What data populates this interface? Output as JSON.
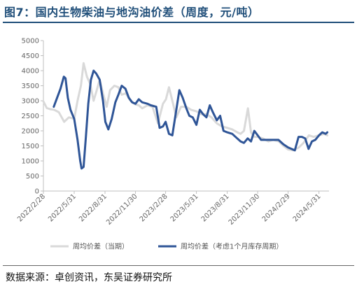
{
  "header": {
    "title": "图7：国内生物柴油与地沟油价差（周度，元/吨）"
  },
  "footer": {
    "source": "数据来源：卓创资讯，东吴证券研究所"
  },
  "chart_data": {
    "type": "line",
    "title": "图7：国内生物柴油与地沟油价差（周度，元/吨）",
    "xlabel": "",
    "ylabel": "",
    "ylim": [
      0,
      5000
    ],
    "yticks": [
      0,
      500,
      1000,
      1500,
      2000,
      2500,
      3000,
      3500,
      4000,
      4500,
      5000
    ],
    "xlim": [
      "2022-02-28",
      "2024-06-30"
    ],
    "xticks": [
      "2022/2/28",
      "2022/5/31",
      "2022/8/31",
      "2022/11/30",
      "2023/2/28",
      "2023/5/31",
      "2023/8/31",
      "2023/11/30",
      "2024/2/29",
      "2024/5/31"
    ],
    "grid": false,
    "legend_position": "bottom",
    "colors": {
      "series1": "#d9d9d9",
      "series2": "#2f5597"
    },
    "series": [
      {
        "name": "周均价差（当期）",
        "points": [
          [
            "2022-02-28",
            2980
          ],
          [
            "2022-03-10",
            2760
          ],
          [
            "2022-03-20",
            2720
          ],
          [
            "2022-04-01",
            2700
          ],
          [
            "2022-04-15",
            2620
          ],
          [
            "2022-05-01",
            2300
          ],
          [
            "2022-05-15",
            2450
          ],
          [
            "2022-05-31",
            2400
          ],
          [
            "2022-06-10",
            3000
          ],
          [
            "2022-06-20",
            3500
          ],
          [
            "2022-06-28",
            4250
          ],
          [
            "2022-07-08",
            3800
          ],
          [
            "2022-07-18",
            3550
          ],
          [
            "2022-07-28",
            3000
          ],
          [
            "2022-08-05",
            3300
          ],
          [
            "2022-08-15",
            3700
          ],
          [
            "2022-08-25",
            3250
          ],
          [
            "2022-09-05",
            2800
          ],
          [
            "2022-09-15",
            3350
          ],
          [
            "2022-09-28",
            3500
          ],
          [
            "2022-10-10",
            3450
          ],
          [
            "2022-10-20",
            3200
          ],
          [
            "2022-11-01",
            3250
          ],
          [
            "2022-11-15",
            3000
          ],
          [
            "2022-11-30",
            2880
          ],
          [
            "2022-12-10",
            2850
          ],
          [
            "2022-12-20",
            2750
          ],
          [
            "2023-01-05",
            2850
          ],
          [
            "2023-01-20",
            2800
          ],
          [
            "2023-02-05",
            2250
          ],
          [
            "2023-02-20",
            2900
          ],
          [
            "2023-03-01",
            3050
          ],
          [
            "2023-03-10",
            3450
          ],
          [
            "2023-03-20",
            3000
          ],
          [
            "2023-04-01",
            2450
          ],
          [
            "2023-04-15",
            2800
          ],
          [
            "2023-05-01",
            2800
          ],
          [
            "2023-05-15",
            2700
          ],
          [
            "2023-05-31",
            2650
          ],
          [
            "2023-06-15",
            2550
          ],
          [
            "2023-06-30",
            2550
          ],
          [
            "2023-07-15",
            2450
          ],
          [
            "2023-07-31",
            2250
          ],
          [
            "2023-08-15",
            2150
          ],
          [
            "2023-08-31",
            2100
          ],
          [
            "2023-09-15",
            2050
          ],
          [
            "2023-09-30",
            1950
          ],
          [
            "2023-10-10",
            1900
          ],
          [
            "2023-10-20",
            2000
          ],
          [
            "2023-11-01",
            2750
          ],
          [
            "2023-11-10",
            1950
          ],
          [
            "2023-11-20",
            1800
          ],
          [
            "2023-11-30",
            1800
          ],
          [
            "2023-12-15",
            1750
          ],
          [
            "2024-01-01",
            1650
          ],
          [
            "2024-01-15",
            1700
          ],
          [
            "2024-02-01",
            1650
          ],
          [
            "2024-02-15",
            1500
          ],
          [
            "2024-02-29",
            1380
          ],
          [
            "2024-03-15",
            1350
          ],
          [
            "2024-04-01",
            1450
          ],
          [
            "2024-04-15",
            1600
          ],
          [
            "2024-05-01",
            1850
          ],
          [
            "2024-05-15",
            1800
          ],
          [
            "2024-05-31",
            1850
          ],
          [
            "2024-06-15",
            1900
          ],
          [
            "2024-06-25",
            1850
          ]
        ]
      },
      {
        "name": "周均价差（考虑1个月库存周期）",
        "points": [
          [
            "2022-03-31",
            2800
          ],
          [
            "2022-04-10",
            3100
          ],
          [
            "2022-04-20",
            3400
          ],
          [
            "2022-04-30",
            3800
          ],
          [
            "2022-05-05",
            3750
          ],
          [
            "2022-05-12",
            3100
          ],
          [
            "2022-05-20",
            2700
          ],
          [
            "2022-05-31",
            2400
          ],
          [
            "2022-06-10",
            1700
          ],
          [
            "2022-06-18",
            1000
          ],
          [
            "2022-06-22",
            750
          ],
          [
            "2022-06-28",
            800
          ],
          [
            "2022-07-05",
            1800
          ],
          [
            "2022-07-12",
            2900
          ],
          [
            "2022-07-20",
            3700
          ],
          [
            "2022-07-28",
            4000
          ],
          [
            "2022-08-05",
            3900
          ],
          [
            "2022-08-15",
            3700
          ],
          [
            "2022-08-25",
            3000
          ],
          [
            "2022-09-01",
            2300
          ],
          [
            "2022-09-10",
            2050
          ],
          [
            "2022-09-20",
            2400
          ],
          [
            "2022-10-01",
            2950
          ],
          [
            "2022-10-10",
            3200
          ],
          [
            "2022-10-20",
            3500
          ],
          [
            "2022-10-31",
            3400
          ],
          [
            "2022-11-10",
            3100
          ],
          [
            "2022-11-20",
            2950
          ],
          [
            "2022-11-30",
            2900
          ],
          [
            "2022-12-10",
            3050
          ],
          [
            "2022-12-20",
            2950
          ],
          [
            "2023-01-05",
            2900
          ],
          [
            "2023-01-15",
            2850
          ],
          [
            "2023-01-31",
            2800
          ],
          [
            "2023-02-10",
            2100
          ],
          [
            "2023-02-20",
            2150
          ],
          [
            "2023-02-28",
            2300
          ],
          [
            "2023-03-10",
            1900
          ],
          [
            "2023-03-20",
            1850
          ],
          [
            "2023-04-01",
            2700
          ],
          [
            "2023-04-10",
            3350
          ],
          [
            "2023-04-20",
            3100
          ],
          [
            "2023-05-01",
            2750
          ],
          [
            "2023-05-10",
            2500
          ],
          [
            "2023-05-20",
            2450
          ],
          [
            "2023-05-31",
            2200
          ],
          [
            "2023-06-10",
            2700
          ],
          [
            "2023-06-20",
            2550
          ],
          [
            "2023-06-30",
            2450
          ],
          [
            "2023-07-10",
            2850
          ],
          [
            "2023-07-20",
            2600
          ],
          [
            "2023-07-31",
            2350
          ],
          [
            "2023-08-10",
            2500
          ],
          [
            "2023-08-20",
            2000
          ],
          [
            "2023-08-31",
            1950
          ],
          [
            "2023-09-15",
            1900
          ],
          [
            "2023-09-30",
            1750
          ],
          [
            "2023-10-10",
            1650
          ],
          [
            "2023-10-20",
            1600
          ],
          [
            "2023-10-31",
            1750
          ],
          [
            "2023-11-10",
            1650
          ],
          [
            "2023-11-20",
            2000
          ],
          [
            "2023-11-30",
            1850
          ],
          [
            "2023-12-10",
            1700
          ],
          [
            "2023-12-31",
            1700
          ],
          [
            "2024-01-15",
            1700
          ],
          [
            "2024-01-31",
            1700
          ],
          [
            "2024-02-15",
            1550
          ],
          [
            "2024-02-29",
            1450
          ],
          [
            "2024-03-10",
            1400
          ],
          [
            "2024-03-20",
            1350
          ],
          [
            "2024-03-31",
            1800
          ],
          [
            "2024-04-10",
            1800
          ],
          [
            "2024-04-20",
            1750
          ],
          [
            "2024-04-30",
            1400
          ],
          [
            "2024-05-10",
            1650
          ],
          [
            "2024-05-20",
            1700
          ],
          [
            "2024-05-31",
            1850
          ],
          [
            "2024-06-10",
            1950
          ],
          [
            "2024-06-20",
            1900
          ],
          [
            "2024-06-25",
            1950
          ]
        ]
      }
    ]
  }
}
